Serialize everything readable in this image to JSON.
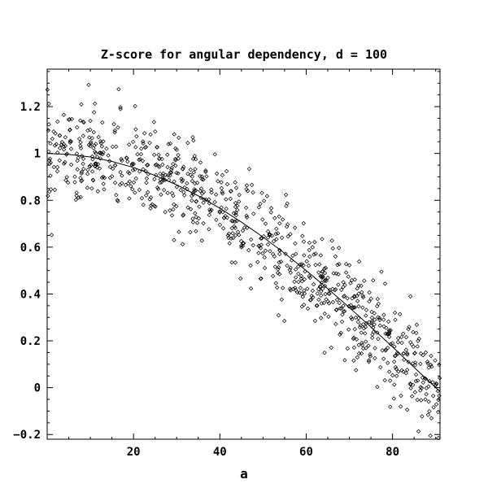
{
  "chart_data": {
    "type": "scatter",
    "title": "Z-score for angular dependency, d = 100",
    "xlabel": "a",
    "ylabel": "",
    "xlim": [
      0,
      91
    ],
    "ylim": [
      -0.22,
      1.36
    ],
    "x_ticks": [
      20,
      40,
      60,
      80
    ],
    "x_tick_labels": [
      "20",
      "40",
      "60",
      "80"
    ],
    "y_ticks": [
      -0.2,
      0,
      0.2,
      0.4,
      0.6,
      0.8,
      1,
      1.2
    ],
    "y_tick_labels": [
      "−0.2",
      "0",
      "0.2",
      "0.4",
      "0.6",
      "0.8",
      "1",
      "1.2"
    ],
    "grid": false,
    "legend": "none",
    "marker": "diamond",
    "series": [
      {
        "kind": "curve",
        "formula": "cos(a degrees)",
        "x": [
          0,
          5,
          10,
          15,
          20,
          25,
          30,
          35,
          40,
          45,
          50,
          55,
          60,
          65,
          70,
          75,
          80,
          85,
          90,
          91
        ],
        "values": [
          1.0,
          0.996,
          0.985,
          0.966,
          0.94,
          0.906,
          0.866,
          0.819,
          0.766,
          0.707,
          0.643,
          0.574,
          0.5,
          0.423,
          0.342,
          0.259,
          0.174,
          0.087,
          0.0,
          -0.017
        ]
      },
      {
        "kind": "points",
        "count": 900,
        "x_range": [
          0,
          91
        ],
        "trend": "cos(a degrees)",
        "noise_sd": 0.1
      }
    ]
  }
}
